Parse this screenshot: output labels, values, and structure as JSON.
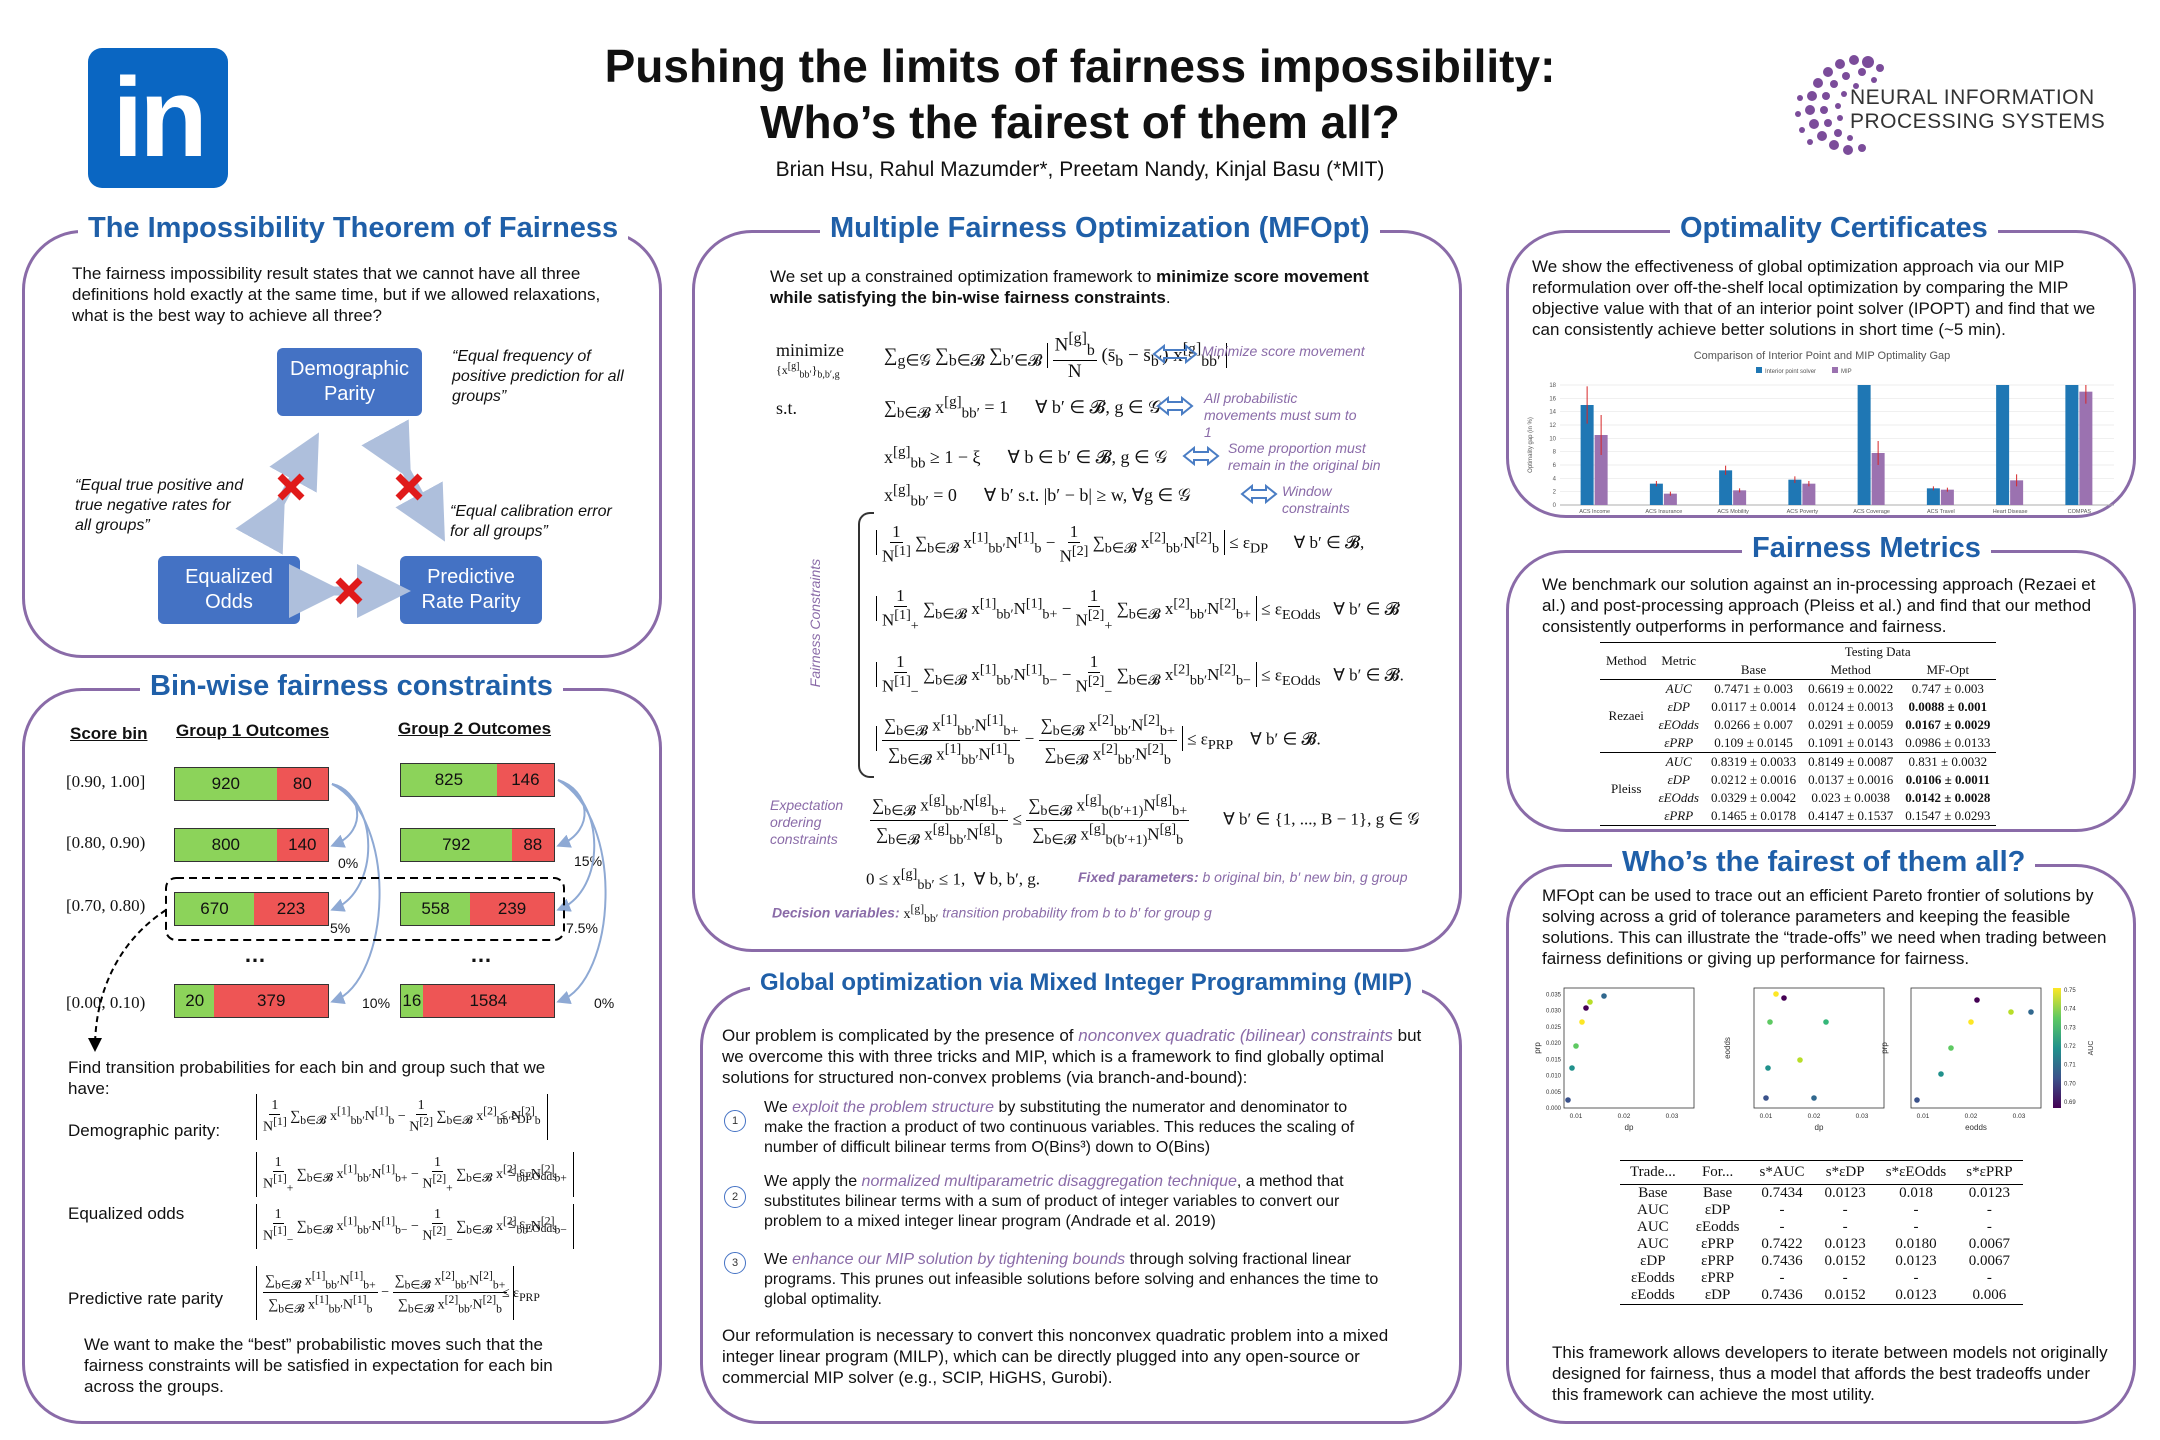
{
  "header": {
    "logo_left": "in",
    "title_line1": "Pushing the limits of fairness impossibility:",
    "title_line2": "Who’s the fairest of them all?",
    "authors": "Brian Hsu, Rahul Mazumder*, Preetam Nandy, Kinjal Basu (*MIT)",
    "logo_right_line1": "NEURAL INFORMATION",
    "logo_right_line2": "PROCESSING SYSTEMS"
  },
  "impossibility": {
    "title": "The Impossibility Theorem of Fairness",
    "body": "The fairness impossibility result states that we cannot have all three definitions hold exactly at the same time, but if we allowed relaxations, what is the best way to achieve all three?",
    "node_dp": "Demographic Parity",
    "node_eo": "Equalized Odds",
    "node_prp": "Predictive Rate Parity",
    "quote_dp": "“Equal frequency of positive prediction for all groups”",
    "quote_eo": "“Equal true positive and true negative rates for all groups”",
    "quote_prp": "“Equal calibration error for all groups”"
  },
  "binwise": {
    "title": "Bin-wise fairness constraints",
    "col_bin": "Score bin",
    "col_g1": "Group 1 Outcomes",
    "col_g2": "Group 2 Outcomes",
    "rows": [
      {
        "bin": "[0.90, 1.00]",
        "g1": [
          920,
          80
        ],
        "g2": [
          825,
          146
        ]
      },
      {
        "bin": "[0.80, 0.90)",
        "g1": [
          800,
          140
        ],
        "g2": [
          792,
          88
        ]
      },
      {
        "bin": "[0.70, 0.80)",
        "g1": [
          670,
          223
        ],
        "g2": [
          558,
          239
        ]
      },
      {
        "bin": "[0.00, 0.10)",
        "g1": [
          20,
          379
        ],
        "g2": [
          16,
          1584
        ]
      }
    ],
    "dots": "…",
    "pct_g1": [
      "0%",
      "5%",
      "10%"
    ],
    "pct_g2": [
      "15%",
      "7.5%",
      "0%"
    ],
    "find_text": "Find transition probabilities for each bin and group such that we have:",
    "dp_label": "Demographic parity:",
    "eo_label": "Equalized odds",
    "prp_label": "Predictive rate parity",
    "bottom_text": "We want to make the “best” probabilistic moves such that the fairness constraints will be satisfied in expectation for each bin across the groups."
  },
  "mfopt": {
    "title": "Multiple Fairness Optimization (MFOpt)",
    "intro_plain": "We set up a constrained optimization framework to ",
    "intro_bold": "minimize score movement while satisfying the bin-wise fairness constraints",
    "intro_end": ".",
    "minimize": "minimize",
    "st": "s.t.",
    "ann1": "Minimize score movement",
    "ann2": "All probabilistic movements must sum to 1",
    "ann3": "Some proportion must remain in the original bin",
    "ann4": "Window constraints",
    "fairness_label": "Fairness Constraints",
    "expect_label": "Expectation ordering constraints",
    "fixed_label": "Fixed parameters:",
    "fixed_text": "b original bin, b′ new bin, g group",
    "decision_label": "Decision variables:",
    "decision_text": "transition probability from b to b′ for group g"
  },
  "mip": {
    "title": "Global optimization via Mixed Integer Programming (MIP)",
    "intro_a": "Our problem is complicated by the presence of ",
    "intro_hl": "nonconvex quadratic (bilinear) constraints",
    "intro_b": " but we overcome this with three tricks and MIP, which is a framework to find globally optimal solutions for structured non-convex problems (via branch-and-bound):",
    "items": [
      {
        "n": "1",
        "a": "We ",
        "hl": "exploit the problem structure",
        "b": " by substituting the numerator and denominator to make the fraction a product of two continuous variables. This reduces the scaling of number of difficult bilinear terms from O(Bins³) down to O(Bins)"
      },
      {
        "n": "2",
        "a": "We apply the ",
        "hl": "normalized multiparametric disaggregation technique",
        "b": ", a method that substitutes bilinear terms with a sum of product of integer variables to convert our problem to a mixed integer linear program (Andrade et al. 2019)"
      },
      {
        "n": "3",
        "a": "We ",
        "hl": "enhance our MIP solution by tightening bounds",
        "b": " through solving fractional linear programs. This prunes out infeasible solutions before solving and enhances the time to global optimality."
      }
    ],
    "outro": "Our reformulation is necessary to convert this nonconvex quadratic problem into a mixed integer linear program (MILP), which can be directly plugged into any open-source or commercial MIP solver (e.g., SCIP, HiGHS, Gurobi)."
  },
  "certificates": {
    "title": "Optimality Certificates",
    "body": "We show the effectiveness of global optimization approach via our MIP reformulation over off-the-shelf local optimization by comparing the MIP objective value with that of an interior point solver (IPOPT) and find that we can consistently achieve better solutions in short time (~5 min).",
    "chart_title": "Comparison of Interior Point and MIP Optimality Gap",
    "legend_a": "Interior point solver",
    "legend_b": "MIP",
    "ylabel": "Optimality gap (in %)"
  },
  "chart_data": {
    "type": "bar",
    "title": "Comparison of Interior Point and MIP Optimality Gap",
    "xlabel": "",
    "ylabel": "Optimality gap (in %)",
    "ylim": [
      0,
      18
    ],
    "yticks": [
      0,
      2,
      4,
      6,
      8,
      10,
      12,
      14,
      16,
      18
    ],
    "categories": [
      "ACS Income",
      "ACS Insurance",
      "ACS Mobility",
      "ACS Poverty",
      "ACS Coverage",
      "ACS Travel",
      "Heart Disease",
      "COMPAS"
    ],
    "series": [
      {
        "name": "Interior point solver",
        "values": [
          15,
          3.2,
          5.2,
          3.8,
          18,
          2.5,
          18,
          18
        ],
        "err": [
          2.8,
          0.4,
          0.7,
          0.5,
          0,
          0.3,
          0,
          0
        ],
        "color": "#1f77b4"
      },
      {
        "name": "MIP",
        "values": [
          10.5,
          1.7,
          2.2,
          3.2,
          7.8,
          2.3,
          3.7,
          17
        ],
        "err": [
          3,
          0.3,
          0.3,
          0.4,
          1.8,
          0.3,
          0.9,
          1.8
        ],
        "color": "#9b72b0"
      }
    ],
    "legend": "top"
  },
  "metrics": {
    "title": "Fairness Metrics",
    "body": "We benchmark our solution against an in-processing approach (Rezaei et al.) and post-processing approach (Pleiss et al.) and find that our method consistently outperforms in performance and fairness.",
    "col_method": "Method",
    "col_metric": "Metric",
    "col_testing": "Testing Data",
    "col_method2": "Method",
    "col_base": "Base",
    "col_mf": "MF-Opt",
    "groups": [
      {
        "name": "Rezaei",
        "rows": [
          {
            "metric": "AUC",
            "base": "0.7471 ± 0.003",
            "method": "0.6619 ± 0.0022",
            "mf": "0.747 ± 0.003",
            "bold": false
          },
          {
            "metric": "εDP",
            "base": "0.0117 ± 0.0014",
            "method": "0.0124 ± 0.0013",
            "mf": "0.0088 ± 0.001",
            "bold": true
          },
          {
            "metric": "εEOdds",
            "base": "0.0266 ± 0.007",
            "method": "0.0291 ± 0.0059",
            "mf": "0.0167 ± 0.0029",
            "bold": true
          },
          {
            "metric": "εPRP",
            "base": "0.109 ± 0.0145",
            "method": "0.1091 ± 0.0143",
            "mf": "0.0986 ± 0.0133",
            "bold": false
          }
        ]
      },
      {
        "name": "Pleiss",
        "rows": [
          {
            "metric": "AUC",
            "base": "0.8319 ± 0.0033",
            "method": "0.8149 ± 0.0087",
            "mf": "0.831 ± 0.0032",
            "bold": false
          },
          {
            "metric": "εDP",
            "base": "0.0212 ± 0.0016",
            "method": "0.0137 ± 0.0016",
            "mf": "0.0106 ± 0.0011",
            "bold": true
          },
          {
            "metric": "εEOdds",
            "base": "0.0329 ± 0.0042",
            "method": "0.023 ± 0.0038",
            "mf": "0.0142 ± 0.0028",
            "bold": true
          },
          {
            "metric": "εPRP",
            "base": "0.1465 ± 0.0178",
            "method": "0.4147 ± 0.1537",
            "mf": "0.1547 ± 0.0293",
            "bold": false
          }
        ]
      }
    ]
  },
  "fairest": {
    "title": "Who’s the fairest of them all?",
    "body": "MFOpt can be used to trace out an efficient Pareto frontier of solutions by solving across a grid of tolerance parameters and keeping the feasible solutions. This can illustrate the “trade-offs” we need when trading between fairness definitions or giving up performance for fairness.",
    "scatter_xlabels": [
      "dp",
      "dp",
      "eodds"
    ],
    "scatter_ylabels": [
      "prp",
      "eodds",
      "prp"
    ],
    "scatter_xticks": [
      "0.01",
      "0.02",
      "0.03"
    ],
    "scatter_yticks": [
      "0.000",
      "0.005",
      "0.010",
      "0.015",
      "0.020",
      "0.025",
      "0.030",
      "0.035"
    ],
    "colorbar_label": "AUC",
    "colorbar_ticks": [
      "0.75",
      "0.74",
      "0.73",
      "0.72",
      "0.71",
      "0.70",
      "0.69"
    ],
    "table_header": [
      "Trade...",
      "For...",
      "s*AUC",
      "s*εDP",
      "s*εEOdds",
      "s*εPRP"
    ],
    "table_rows": [
      [
        "Base",
        "Base",
        "0.7434",
        "0.0123",
        "0.018",
        "0.0123"
      ],
      [
        "AUC",
        "εDP",
        "-",
        "-",
        "-",
        "-"
      ],
      [
        "AUC",
        "εEodds",
        "-",
        "-",
        "-",
        "-"
      ],
      [
        "AUC",
        "εPRP",
        "0.7422",
        "0.0123",
        "0.0180",
        "0.0067"
      ],
      [
        "εDP",
        "εPRP",
        "0.7436",
        "0.0152",
        "0.0123",
        "0.0067"
      ],
      [
        "εEodds",
        "εPRP",
        "-",
        "-",
        "-",
        "-"
      ],
      [
        "εEodds",
        "εDP",
        "0.7436",
        "0.0152",
        "0.0123",
        "0.006"
      ]
    ],
    "outro": "This framework allows developers to iterate between models not originally designed for fairness, thus a model that affords the best tradeoffs under this framework can achieve the most utility."
  }
}
